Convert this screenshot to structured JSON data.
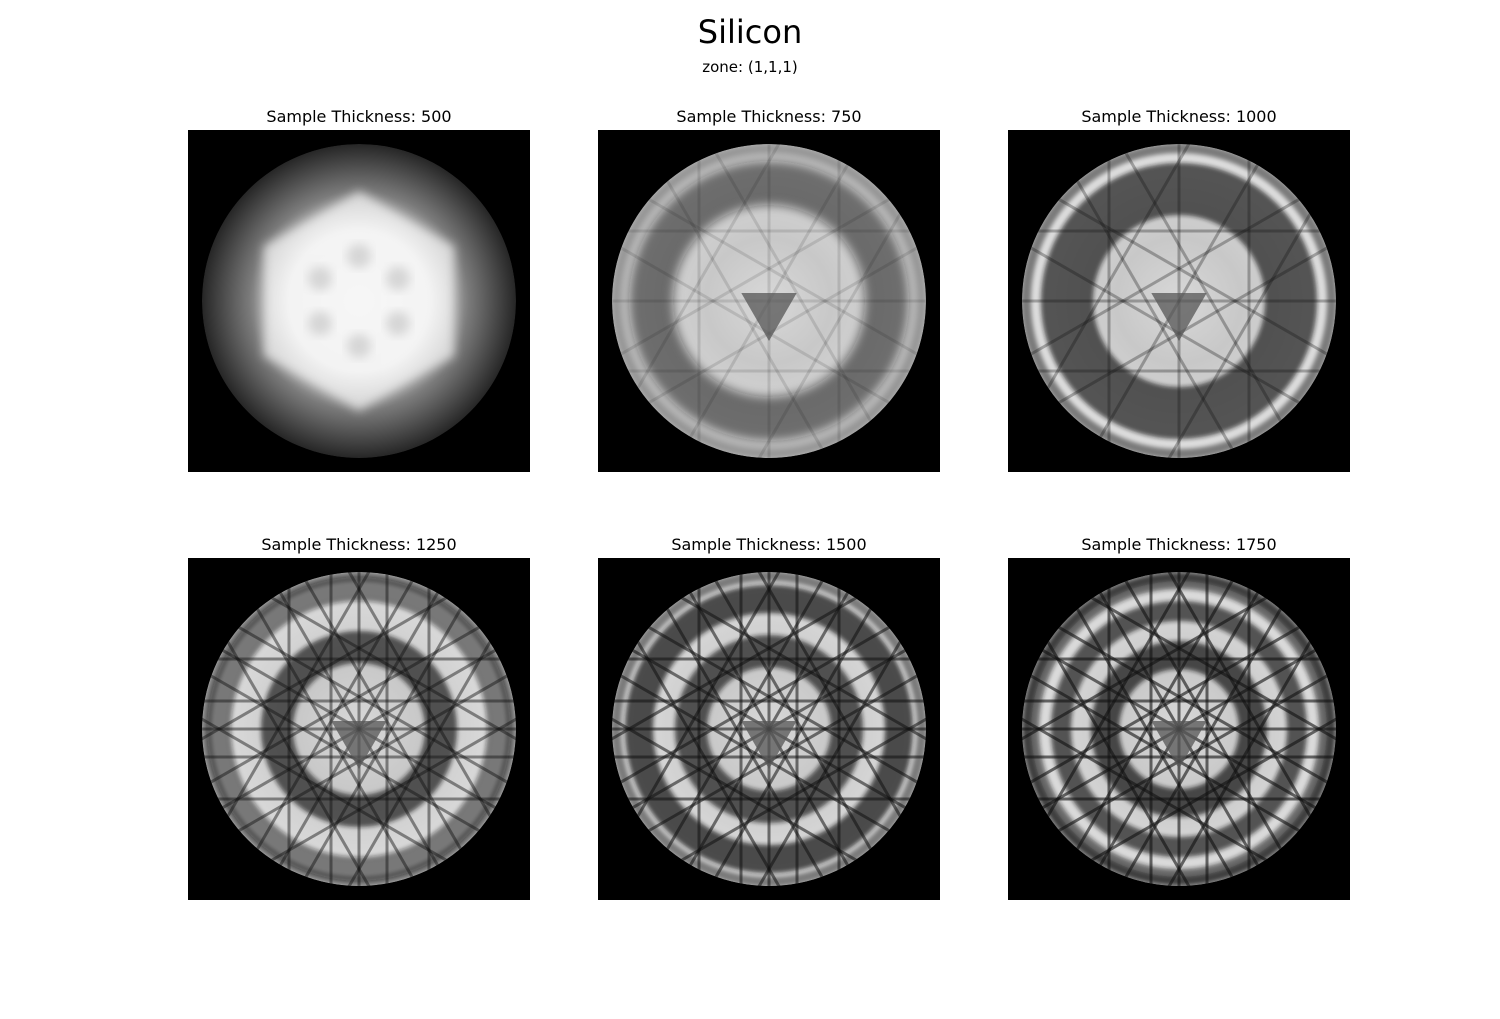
{
  "title": "Silicon",
  "subtitle": "zone: (1,1,1)",
  "panels": [
    {
      "label": "Sample Thickness: 500",
      "thickness": 500
    },
    {
      "label": "Sample Thickness: 750",
      "thickness": 750
    },
    {
      "label": "Sample Thickness: 1000",
      "thickness": 1000
    },
    {
      "label": "Sample Thickness: 1250",
      "thickness": 1250
    },
    {
      "label": "Sample Thickness: 1500",
      "thickness": 1500
    },
    {
      "label": "Sample Thickness: 1750",
      "thickness": 1750
    }
  ]
}
